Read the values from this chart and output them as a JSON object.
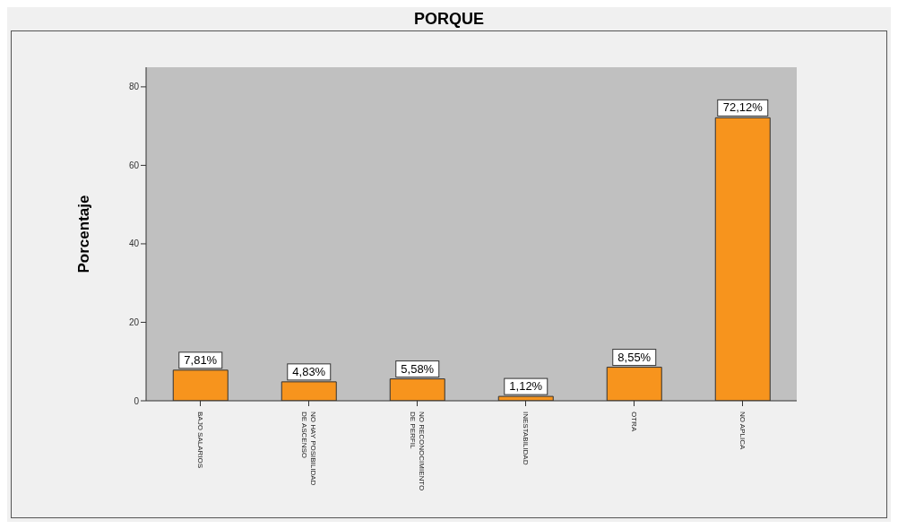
{
  "chart_data": {
    "type": "bar",
    "title": "PORQUE",
    "ylabel": "Porcentaje",
    "categories": [
      "BAJO SALARIOS",
      "NO HAY POSIBILIDAD DE ASCENSO",
      "NO RECONOCIMIENTO DE PERFIL",
      "INESTABILIDAD",
      "OTRA",
      "NO APLICA"
    ],
    "values": [
      7.81,
      4.83,
      5.58,
      1.12,
      8.55,
      72.12
    ],
    "value_labels": [
      "7,81%",
      "4,83%",
      "5,58%",
      "1,12%",
      "8,55%",
      "72,12%"
    ],
    "color": "#f7941d",
    "ylim": [
      0,
      85
    ],
    "yticks": [
      0,
      20,
      40,
      60,
      80
    ],
    "grid": false,
    "legend": false
  }
}
